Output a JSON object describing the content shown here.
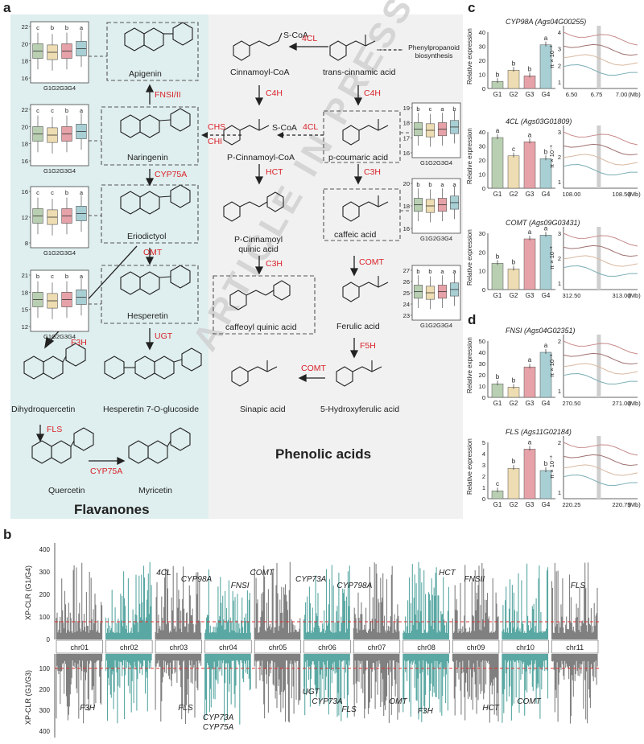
{
  "panels": {
    "a": "a",
    "b": "b",
    "c": "c",
    "d": "d"
  },
  "flavanones_title": "Flavanones",
  "phenolic_title": "Phenolic acids",
  "watermark": "ARTICLE IN PRESS",
  "compounds": {
    "apigenin": "Apigenin",
    "naringenin": "Naringenin",
    "eriodictyol": "Eriodictyol",
    "hesperetin": "Hesperetin",
    "dihydroquercetin": "Dihydroquercetin",
    "hesperetin_glc": "Hesperetin 7-O-glucoside",
    "quercetin": "Quercetin",
    "myricetin": "Myricetin",
    "cinnamoyl_coa": "Cinnamoyl-CoA",
    "trans_cinnamic": "trans-cinnamic acid",
    "phenylpropanoid": "Phenylpropanoid biosynthesis",
    "p_cinnamoyl_coa": "P-Cinnamoyl-CoA",
    "p_coumaric": "p-coumaric acid",
    "p_cinnamoyl_quinic": "P-Cinnamoyl quinic acid",
    "caffeic": "caffeic acid",
    "caffeoyl_quinic": "caffeoyl quinic acid",
    "ferulic": "Ferulic acid",
    "sinapic": "Sinapic acid",
    "hydroxyferulic": "5-Hydroxyferulic acid",
    "scoa": "S-CoA"
  },
  "enzymes": {
    "fnsi_ii": "FNSI/II",
    "cyp75a": "CYP75A",
    "omt": "OMT",
    "f3h": "F3H",
    "ugt": "UGT",
    "fls": "FLS",
    "cyp75a_2": "CYP75A",
    "chs": "CHS",
    "chi": "CHI",
    "4cl_1": "4CL",
    "4cl_2": "4CL",
    "c4h_1": "C4H",
    "c4h_2": "C4H",
    "hct": "HCT",
    "c3h_1": "C3H",
    "c3h_2": "C3H",
    "comt_1": "COMT",
    "comt_2": "COMT",
    "f5h": "F5H"
  },
  "boxplot_groups": [
    "G1",
    "G2",
    "G3",
    "G4"
  ],
  "box_colors": {
    "G1": "#b9cfb2",
    "G2": "#eeddb2",
    "G3": "#e6a2a8",
    "G4": "#a8cfd4"
  },
  "boxplots_a_left": [
    {
      "yticks": [
        "22",
        "20",
        "18",
        "16"
      ],
      "letters": [
        "c",
        "b",
        "b",
        "a"
      ]
    },
    {
      "yticks": [
        "22",
        "20",
        "18",
        "16"
      ],
      "letters": [
        "c",
        "c",
        "b",
        "a"
      ]
    },
    {
      "yticks": [
        "16",
        "12",
        "8"
      ],
      "letters": [
        "c",
        "c",
        "b",
        "a"
      ]
    },
    {
      "yticks": [
        "21",
        "18",
        "15",
        "12"
      ],
      "letters": [
        "b",
        "c",
        "b",
        "a"
      ]
    }
  ],
  "boxplots_a_right": [
    {
      "yticks": [
        "19",
        "18",
        "17",
        "16"
      ],
      "letters": [
        "b",
        "c",
        "a",
        "b"
      ]
    },
    {
      "yticks": [
        "20",
        "18",
        "16"
      ],
      "letters": [
        "b",
        "b",
        "a",
        "a"
      ]
    },
    {
      "yticks": [
        "27",
        "26",
        "25",
        "24",
        "23"
      ],
      "letters": [
        "b",
        "b",
        "a",
        "a"
      ]
    }
  ],
  "panel_c": [
    {
      "title": "CYP98A (Ags04G00255)",
      "ylabel": "Relative expression",
      "yticks": [
        "40",
        "30",
        "20",
        "10",
        "0"
      ],
      "values": [
        5,
        13,
        9,
        31
      ],
      "letters": [
        "b",
        "b",
        "b",
        "a"
      ],
      "pi_label": "π × 10⁻³",
      "pi_ticks": [
        "4",
        "3",
        "2",
        "1"
      ],
      "xticks": [
        "6.50",
        "6.75",
        "7.00"
      ],
      "xunit": "(Mb)"
    },
    {
      "title": "4CL (Ags03G01809)",
      "ylabel": "Relative expression",
      "yticks": [
        "40",
        "30",
        "20",
        "10",
        "0"
      ],
      "values": [
        36,
        23,
        33,
        21
      ],
      "letters": [
        "a",
        "c",
        "a",
        "b"
      ],
      "pi_label": "π × 10⁻³",
      "pi_ticks": [
        "3",
        "2",
        "1"
      ],
      "xticks": [
        "108.00",
        "108.50"
      ],
      "xunit": "(Mb)"
    },
    {
      "title": "COMT (Ags09G03431)",
      "ylabel": "Relative expression",
      "yticks": [
        "30",
        "20",
        "10",
        "0"
      ],
      "values": [
        14,
        11,
        27,
        29
      ],
      "letters": [
        "b",
        "b",
        "a",
        "a"
      ],
      "pi_label": "π × 10⁻³",
      "pi_ticks": [
        "3",
        "2",
        "1"
      ],
      "xticks": [
        "312.50",
        "313.00"
      ],
      "xunit": "(Mb)"
    }
  ],
  "panel_d": [
    {
      "title": "FNSI (Ags04G02351)",
      "ylabel": "Relative expression",
      "yticks": [
        "50",
        "40",
        "30",
        "20",
        "10",
        "0"
      ],
      "values": [
        12,
        9,
        27,
        40
      ],
      "letters": [
        "b",
        "b",
        "a",
        "a"
      ],
      "pi_label": "π × 10⁻³",
      "pi_ticks": [
        "2",
        "1"
      ],
      "xticks": [
        "270.50",
        "271.00"
      ],
      "xunit": "(Mb)"
    },
    {
      "title": "FLS (Ags11G02184)",
      "ylabel": "Relative expression",
      "yticks": [
        "5",
        "4",
        "3",
        "2",
        "1",
        "0"
      ],
      "values": [
        0.7,
        2.7,
        4.4,
        2.5
      ],
      "letters": [
        "c",
        "b",
        "a",
        "b"
      ],
      "pi_label": "π × 10⁻³",
      "pi_ticks": [
        "2",
        "1"
      ],
      "xticks": [
        "220.25",
        "220.75"
      ],
      "xunit": "(Mb)"
    }
  ],
  "panel_b": {
    "ylabel_top": "XP-CLR (G1/G4)",
    "ylabel_bottom": "XP-CLR (G1/G3)",
    "yticks_top": [
      "400",
      "300",
      "200",
      "100",
      "0"
    ],
    "yticks_bottom": [
      "100",
      "200",
      "300",
      "400"
    ],
    "chromosomes": [
      "chr01",
      "chr02",
      "chr03",
      "chr04",
      "chr05",
      "chr06",
      "chr07",
      "chr08",
      "chr09",
      "chr10",
      "chr11"
    ],
    "labels_top": [
      "4CL",
      "CYP98A",
      "FNSI",
      "COMT",
      "CYP73A",
      "CYP798A",
      "HCT",
      "FNSII",
      "FLS"
    ],
    "labels_bottom": [
      "F3H",
      "FLS",
      "CYP73A",
      "CYP75A",
      "UGT",
      "CYP73A",
      "FLS",
      "OMT",
      "F3H",
      "HCT",
      "COMT"
    ],
    "colors": {
      "grey": "#808080",
      "teal": "#5aa8a3",
      "threshold": "#e03030"
    }
  }
}
